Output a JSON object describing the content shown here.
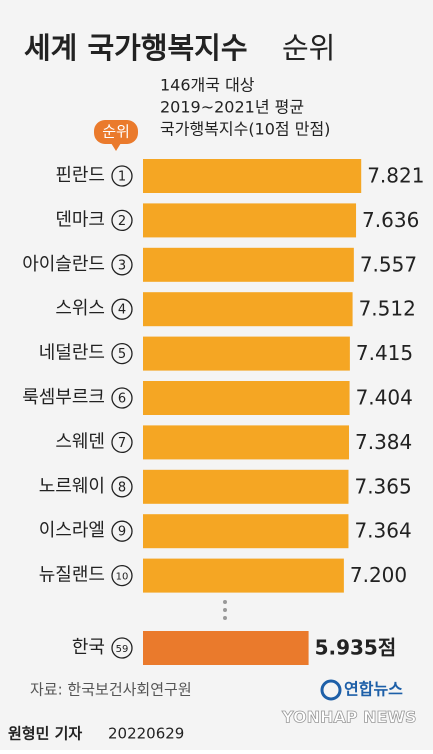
{
  "chart_data": {
    "type": "bar",
    "orientation": "horizontal",
    "title": "세계 국가행복지수",
    "title_suffix": "순위",
    "subtitle": [
      "146개국 대상",
      "2019~2021년 평균",
      "국가행복지수(10점 만점)"
    ],
    "rank_label": "순위",
    "categories": [
      "핀란드",
      "덴마크",
      "아이슬란드",
      "스위스",
      "네덜란드",
      "룩셈부르크",
      "스웨덴",
      "노르웨이",
      "이스라엘",
      "뉴질랜드",
      "한국"
    ],
    "ranks": [
      1,
      2,
      3,
      4,
      5,
      6,
      7,
      8,
      9,
      10,
      59
    ],
    "values": [
      7.821,
      7.636,
      7.557,
      7.512,
      7.415,
      7.404,
      7.384,
      7.365,
      7.364,
      7.2,
      5.935
    ],
    "value_labels": [
      "7.821",
      "7.636",
      "7.557",
      "7.512",
      "7.415",
      "7.404",
      "7.384",
      "7.365",
      "7.364",
      "7.200",
      "5.935점"
    ],
    "color": "#f5a623",
    "highlight_color": "#ea7a2c",
    "source": "자료: 한국보건사회연구원",
    "logo": "연합뉴스",
    "logo_en": "YONHAP NEWS",
    "byline": "원형민 기자",
    "date": "20220629"
  }
}
